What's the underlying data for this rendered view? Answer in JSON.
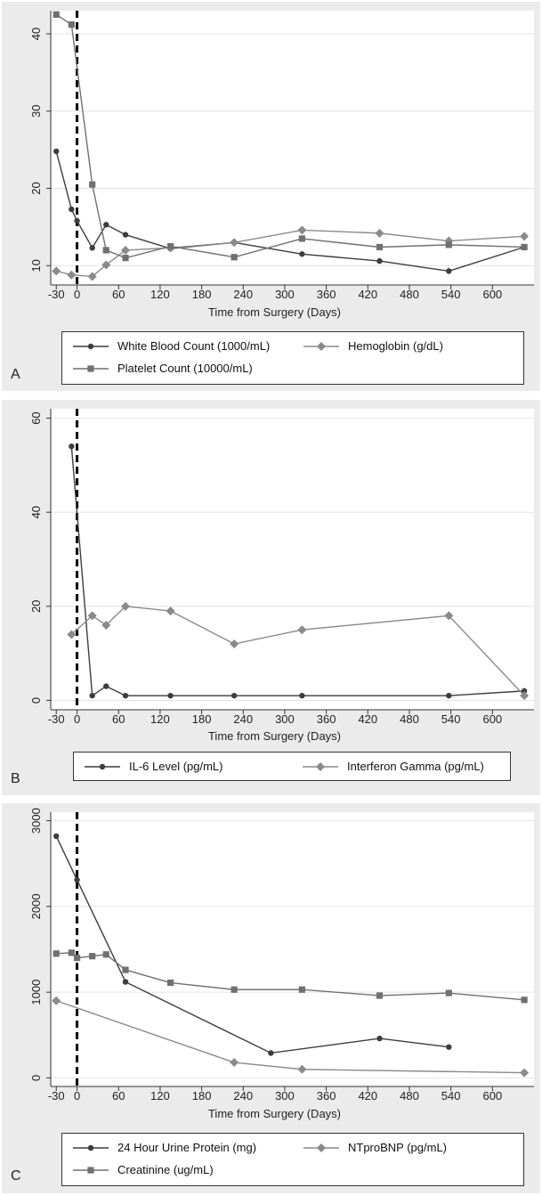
{
  "chart_data": [
    {
      "type": "line",
      "panel_label": "A",
      "xlabel": "Time from Surgery (Days)",
      "xticks": [
        -30,
        0,
        60,
        120,
        180,
        240,
        300,
        360,
        420,
        480,
        540,
        600
      ],
      "yticks": [
        10,
        20,
        30,
        40
      ],
      "xlim": [
        -38,
        660
      ],
      "ylim": [
        7.5,
        43
      ],
      "surgery_line_x": 0,
      "grid": true,
      "legend_position": "bottom",
      "series": [
        {
          "name": "White Blood Count (1000/mL)",
          "marker": "circle",
          "x": [
            -30,
            -8,
            0,
            22,
            42,
            70,
            135,
            227,
            325,
            437,
            537,
            646
          ],
          "y": [
            24.8,
            17.3,
            15.8,
            12.3,
            15.3,
            14.0,
            12.2,
            13.0,
            11.5,
            10.6,
            9.3,
            12.4
          ]
        },
        {
          "name": "Hemoglobin (g/dL)",
          "marker": "diamond",
          "x": [
            -30,
            -8,
            22,
            42,
            70,
            135,
            227,
            325,
            437,
            537,
            646
          ],
          "y": [
            9.3,
            8.8,
            8.6,
            10.1,
            12.0,
            12.3,
            13.0,
            14.6,
            14.2,
            13.2,
            13.8
          ]
        },
        {
          "name": "Platelet Count (10000/mL)",
          "marker": "square",
          "x": [
            -30,
            -8,
            22,
            42,
            70,
            135,
            227,
            325,
            437,
            537,
            646
          ],
          "y": [
            42.5,
            41.2,
            20.5,
            12.0,
            11.0,
            12.5,
            11.1,
            13.5,
            12.4,
            12.7,
            12.4
          ]
        }
      ]
    },
    {
      "type": "line",
      "panel_label": "B",
      "xlabel": "Time from Surgery (Days)",
      "xticks": [
        -30,
        0,
        60,
        120,
        180,
        240,
        300,
        360,
        420,
        480,
        540,
        600
      ],
      "yticks": [
        0,
        20,
        40,
        60
      ],
      "xlim": [
        -38,
        660
      ],
      "ylim": [
        -2,
        62
      ],
      "surgery_line_x": 0,
      "grid": true,
      "legend_position": "bottom",
      "series": [
        {
          "name": "IL-6 Level (pg/mL)",
          "marker": "circle",
          "x": [
            -8,
            22,
            42,
            70,
            135,
            227,
            325,
            537,
            646
          ],
          "y": [
            54,
            1,
            3,
            1,
            1,
            1,
            1,
            1,
            2
          ]
        },
        {
          "name": "Interferon Gamma (pg/mL)",
          "marker": "diamond",
          "x": [
            -8,
            22,
            42,
            70,
            135,
            227,
            325,
            537,
            646
          ],
          "y": [
            14,
            18,
            16,
            20,
            19,
            12,
            15,
            18,
            1
          ]
        }
      ]
    },
    {
      "type": "line",
      "panel_label": "C",
      "xlabel": "Time from Surgery (Days)",
      "xticks": [
        -30,
        0,
        60,
        120,
        180,
        240,
        300,
        360,
        420,
        480,
        540,
        600
      ],
      "yticks": [
        0,
        1000,
        2000,
        3000
      ],
      "xlim": [
        -38,
        660
      ],
      "ylim": [
        -100,
        3100
      ],
      "surgery_line_x": 0,
      "grid": true,
      "legend_position": "bottom",
      "series": [
        {
          "name": "24 Hour Urine Protein (mg)",
          "marker": "circle",
          "x": [
            -30,
            0,
            70,
            280,
            437,
            537
          ],
          "y": [
            2820,
            2310,
            1120,
            290,
            460,
            360
          ]
        },
        {
          "name": "NTproBNP (pg/mL)",
          "marker": "diamond",
          "x": [
            -30,
            227,
            325,
            646
          ],
          "y": [
            900,
            180,
            100,
            60
          ]
        },
        {
          "name": "Creatinine (ug/mL)",
          "marker": "square",
          "x": [
            -30,
            -8,
            0,
            22,
            42,
            70,
            135,
            227,
            325,
            437,
            537,
            646
          ],
          "y": [
            1450,
            1460,
            1400,
            1420,
            1440,
            1260,
            1110,
            1030,
            1030,
            960,
            990,
            910
          ]
        }
      ]
    }
  ]
}
